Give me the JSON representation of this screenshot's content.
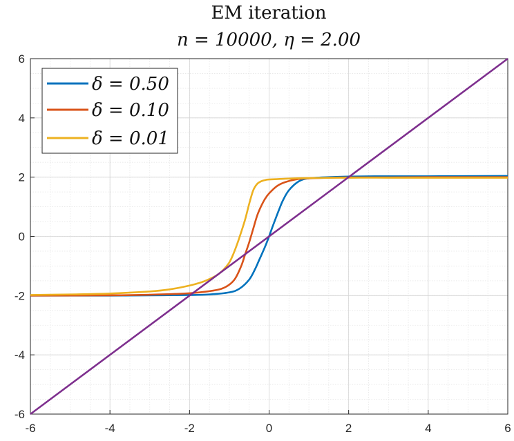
{
  "chart_data": {
    "type": "line",
    "title": "EM iteration",
    "subtitle": "n = 10000, η = 2.00",
    "xlabel": "",
    "ylabel": "",
    "xlim": [
      -6,
      6
    ],
    "ylim": [
      -6,
      6
    ],
    "xticks": [
      -6,
      -4,
      -2,
      0,
      2,
      4,
      6
    ],
    "yticks": [
      -6,
      -4,
      -2,
      0,
      2,
      4,
      6
    ],
    "xtick_labels": [
      "-6",
      "-4",
      "-2",
      "0",
      "2",
      "4",
      "6"
    ],
    "ytick_labels": [
      "-6",
      "-4",
      "-2",
      "0",
      "2",
      "4",
      "6"
    ],
    "grid": true,
    "minor_grid": true,
    "legend_position": "top-left",
    "series": [
      {
        "name": "δ = 0.50",
        "color": "#0072BD",
        "x": [
          -6,
          -4,
          -3,
          -2,
          -1.5,
          -1,
          -0.75,
          -0.5,
          -0.35,
          -0.25,
          -0.15,
          -0.08,
          0,
          0.08,
          0.15,
          0.25,
          0.35,
          0.5,
          0.75,
          1,
          1.5,
          2,
          3,
          4,
          6
        ],
        "y": [
          -2.0,
          -2.0,
          -1.99,
          -1.98,
          -1.96,
          -1.89,
          -1.77,
          -1.46,
          -1.1,
          -0.8,
          -0.5,
          -0.28,
          0,
          0.3,
          0.55,
          0.9,
          1.22,
          1.56,
          1.86,
          1.96,
          2.0,
          2.02,
          2.03,
          2.03,
          2.04
        ]
      },
      {
        "name": "δ = 0.10",
        "color": "#D95319",
        "x": [
          -6,
          -4,
          -3,
          -2,
          -1.5,
          -1.2,
          -1,
          -0.85,
          -0.7,
          -0.6,
          -0.5,
          -0.4,
          -0.3,
          -0.2,
          -0.1,
          0,
          0.2,
          0.4,
          0.7,
          1,
          1.5,
          2,
          3,
          4,
          6
        ],
        "y": [
          -2.0,
          -1.99,
          -1.97,
          -1.92,
          -1.85,
          -1.77,
          -1.63,
          -1.42,
          -1.0,
          -0.6,
          -0.2,
          0.25,
          0.7,
          1.02,
          1.27,
          1.45,
          1.7,
          1.83,
          1.93,
          1.96,
          1.98,
          1.99,
          1.99,
          2.0,
          2.0
        ]
      },
      {
        "name": "δ = 0.01",
        "color": "#EDB120",
        "x": [
          -6,
          -5,
          -4,
          -3,
          -2.5,
          -2,
          -1.7,
          -1.5,
          -1.3,
          -1.15,
          -1,
          -0.9,
          -0.8,
          -0.7,
          -0.6,
          -0.5,
          -0.4,
          -0.3,
          -0.2,
          -0.1,
          0,
          0.5,
          1,
          2,
          3,
          4,
          6
        ],
        "y": [
          -1.98,
          -1.96,
          -1.93,
          -1.86,
          -1.79,
          -1.66,
          -1.55,
          -1.44,
          -1.3,
          -1.13,
          -0.88,
          -0.6,
          -0.25,
          0.15,
          0.58,
          1.1,
          1.55,
          1.77,
          1.86,
          1.9,
          1.92,
          1.95,
          1.97,
          1.98,
          1.98,
          1.98,
          1.98
        ]
      },
      {
        "name": "",
        "color": "#7E2F8E",
        "x": [
          -6,
          6
        ],
        "y": [
          -6,
          6
        ]
      }
    ]
  }
}
